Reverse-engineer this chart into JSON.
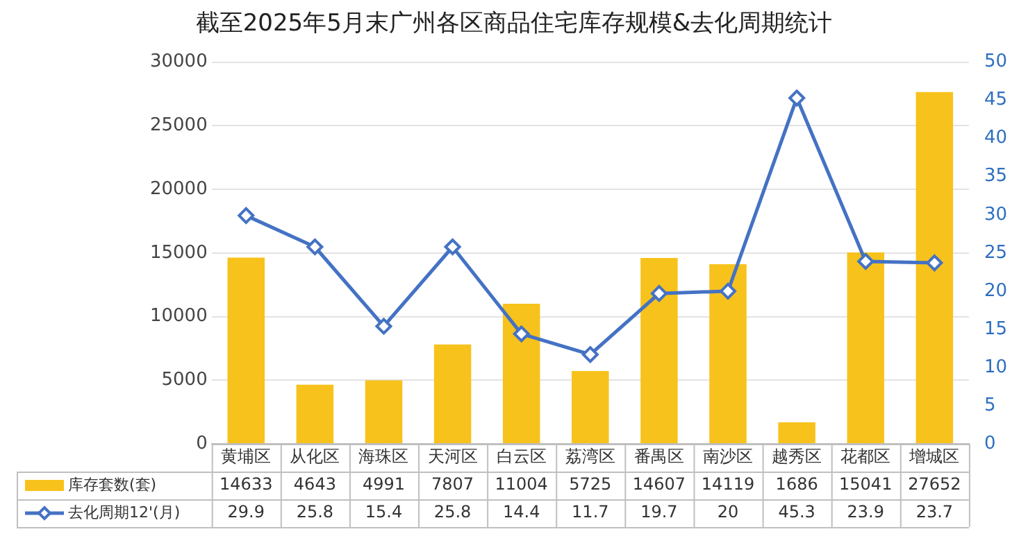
{
  "chart_data": {
    "type": "bar",
    "title": "截至2025年5月末广州各区商品住宅库存规模&去化周期统计",
    "categories": [
      "黄埔区",
      "从化区",
      "海珠区",
      "天河区",
      "白云区",
      "荔湾区",
      "番禺区",
      "南沙区",
      "越秀区",
      "花都区",
      "增城区"
    ],
    "series": [
      {
        "name": "库存套数(套)",
        "color": "#f8c21c",
        "values": [
          14633,
          4643,
          4991,
          7807,
          11004,
          5725,
          14607,
          14119,
          1686,
          15041,
          27652
        ]
      },
      {
        "name": "去化周期12'(月)",
        "type": "line",
        "axis": "y2",
        "color": "#4472c4",
        "marker": "diamond",
        "values": [
          29.9,
          25.8,
          15.4,
          25.8,
          14.4,
          11.7,
          19.7,
          20,
          45.3,
          23.9,
          23.7
        ]
      }
    ],
    "ylim": [
      0,
      30000
    ],
    "yticks": [
      0,
      5000,
      10000,
      15000,
      20000,
      25000,
      30000
    ],
    "y2lim": [
      0,
      50
    ],
    "y2ticks": [
      0,
      5,
      10,
      15,
      20,
      25,
      30,
      35,
      40,
      45,
      50
    ],
    "grid": "y",
    "legend": "bottom",
    "data_labels": true
  }
}
